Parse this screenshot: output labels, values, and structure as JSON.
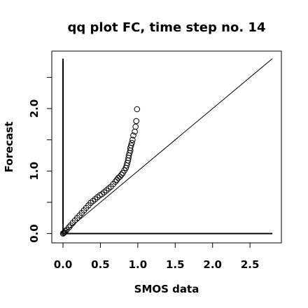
{
  "chart_data": {
    "type": "scatter",
    "title": "qq plot FC, time step no. 14",
    "xlabel": "SMOS data",
    "ylabel": "Forecast",
    "xlim": [
      -0.15,
      2.92
    ],
    "ylim": [
      -0.15,
      2.92
    ],
    "grid": false,
    "legend": "none",
    "x_ticks": [
      {
        "value": 0.0,
        "label": "0.0"
      },
      {
        "value": 0.5,
        "label": "0.5"
      },
      {
        "value": 1.0,
        "label": "1.0"
      },
      {
        "value": 1.5,
        "label": "1.5"
      },
      {
        "value": 2.0,
        "label": "2.0"
      },
      {
        "value": 2.5,
        "label": "2.5"
      }
    ],
    "y_ticks": [
      {
        "value": 0.0,
        "label": "0.0"
      },
      {
        "value": 0.5,
        "label": ""
      },
      {
        "value": 1.0,
        "label": "1.0"
      },
      {
        "value": 1.5,
        "label": ""
      },
      {
        "value": 2.0,
        "label": "2.0"
      },
      {
        "value": 2.5,
        "label": ""
      }
    ],
    "reference_lines": [
      {
        "kind": "identity",
        "from": [
          0.0,
          0.0
        ],
        "to": [
          2.8,
          2.8
        ]
      },
      {
        "kind": "horizontal",
        "from": [
          0.0,
          0.0
        ],
        "to": [
          2.8,
          0.0
        ]
      },
      {
        "kind": "vertical",
        "from": [
          0.0,
          0.0
        ],
        "to": [
          0.0,
          2.8
        ]
      }
    ],
    "series": [
      {
        "marker": "open-circle",
        "color": "#000000",
        "points": [
          [
            0.0,
            0.0
          ],
          [
            0.01,
            0.01
          ],
          [
            0.02,
            0.02
          ],
          [
            0.03,
            0.04
          ],
          [
            0.05,
            0.06
          ],
          [
            0.08,
            0.1
          ],
          [
            0.1,
            0.13
          ],
          [
            0.13,
            0.17
          ],
          [
            0.16,
            0.21
          ],
          [
            0.19,
            0.25
          ],
          [
            0.22,
            0.29
          ],
          [
            0.25,
            0.33
          ],
          [
            0.28,
            0.37
          ],
          [
            0.31,
            0.41
          ],
          [
            0.34,
            0.45
          ],
          [
            0.37,
            0.49
          ],
          [
            0.4,
            0.52
          ],
          [
            0.43,
            0.55
          ],
          [
            0.46,
            0.58
          ],
          [
            0.49,
            0.61
          ],
          [
            0.52,
            0.63
          ],
          [
            0.55,
            0.66
          ],
          [
            0.58,
            0.69
          ],
          [
            0.61,
            0.72
          ],
          [
            0.64,
            0.75
          ],
          [
            0.67,
            0.79
          ],
          [
            0.7,
            0.83
          ],
          [
            0.72,
            0.86
          ],
          [
            0.74,
            0.89
          ],
          [
            0.76,
            0.91
          ],
          [
            0.78,
            0.94
          ],
          [
            0.8,
            0.97
          ],
          [
            0.82,
            1.01
          ],
          [
            0.84,
            1.05
          ],
          [
            0.85,
            1.09
          ],
          [
            0.86,
            1.13
          ],
          [
            0.87,
            1.17
          ],
          [
            0.875,
            1.21
          ],
          [
            0.88,
            1.25
          ],
          [
            0.89,
            1.29
          ],
          [
            0.9,
            1.33
          ],
          [
            0.9,
            1.37
          ],
          [
            0.91,
            1.41
          ],
          [
            0.92,
            1.45
          ],
          [
            0.93,
            1.5
          ],
          [
            0.94,
            1.57
          ],
          [
            0.96,
            1.63
          ],
          [
            0.97,
            1.71
          ],
          [
            0.98,
            1.8
          ],
          [
            0.99,
            1.99
          ]
        ]
      }
    ]
  }
}
